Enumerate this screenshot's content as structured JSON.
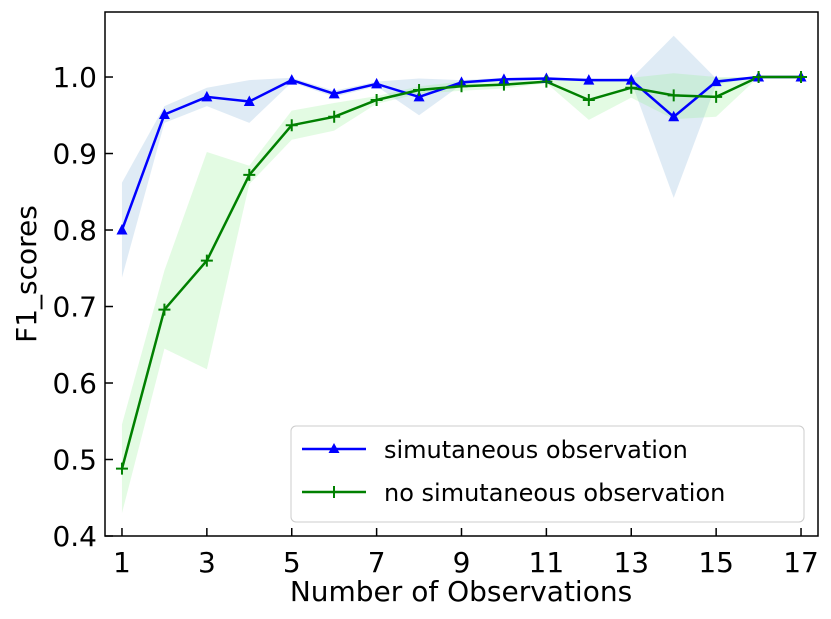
{
  "chart_data": {
    "type": "line",
    "xlabel": "Number of Observations",
    "ylabel": "F1_scores",
    "xlim": [
      0.6,
      17.4
    ],
    "ylim": [
      0.4,
      1.085
    ],
    "xticks": [
      1,
      3,
      5,
      7,
      9,
      11,
      13,
      15,
      17
    ],
    "xtick_labels": [
      "1",
      "3",
      "5",
      "7",
      "9",
      "11",
      "13",
      "15",
      "17"
    ],
    "yticks": [
      0.4,
      0.5,
      0.6,
      0.7,
      0.8,
      0.9,
      1.0
    ],
    "ytick_labels": [
      "0.4",
      "0.5",
      "0.6",
      "0.7",
      "0.8",
      "0.9",
      "1.0"
    ],
    "grid": false,
    "legend_position": "lower-right",
    "x": [
      1,
      2,
      3,
      4,
      5,
      6,
      7,
      8,
      9,
      10,
      11,
      12,
      13,
      14,
      15,
      16,
      17
    ],
    "series": [
      {
        "name": "simutaneous observation",
        "color": "#0000ff",
        "band_color": "#7fb0d8",
        "marker": "triangle",
        "values": [
          0.8,
          0.951,
          0.974,
          0.968,
          0.996,
          0.978,
          0.991,
          0.974,
          0.993,
          0.997,
          0.998,
          0.996,
          0.996,
          0.948,
          0.994,
          1.0,
          1.0
        ],
        "lower": [
          0.738,
          0.94,
          0.962,
          0.94,
          0.993,
          0.974,
          0.988,
          0.95,
          0.99,
          0.995,
          0.997,
          0.994,
          0.994,
          0.842,
          0.99,
          1.0,
          1.0
        ],
        "upper": [
          0.862,
          0.962,
          0.986,
          0.996,
          0.999,
          0.982,
          0.994,
          0.998,
          0.996,
          0.999,
          0.999,
          0.998,
          0.998,
          1.054,
          0.998,
          1.0,
          1.0
        ]
      },
      {
        "name": "no simutaneous observation",
        "color": "#008000",
        "band_color": "#90ee90",
        "marker": "plus",
        "values": [
          0.488,
          0.696,
          0.76,
          0.872,
          0.937,
          0.948,
          0.97,
          0.983,
          0.988,
          0.99,
          0.994,
          0.97,
          0.986,
          0.976,
          0.974,
          1.0,
          1.0
        ],
        "lower": [
          0.43,
          0.645,
          0.618,
          0.86,
          0.918,
          0.93,
          0.965,
          0.978,
          0.982,
          0.985,
          0.992,
          0.944,
          0.973,
          0.945,
          0.948,
          1.0,
          1.0
        ],
        "upper": [
          0.546,
          0.747,
          0.902,
          0.884,
          0.956,
          0.966,
          0.975,
          0.988,
          0.994,
          0.995,
          0.996,
          0.996,
          0.999,
          1.005,
          1.0,
          1.0,
          1.0
        ]
      }
    ]
  }
}
